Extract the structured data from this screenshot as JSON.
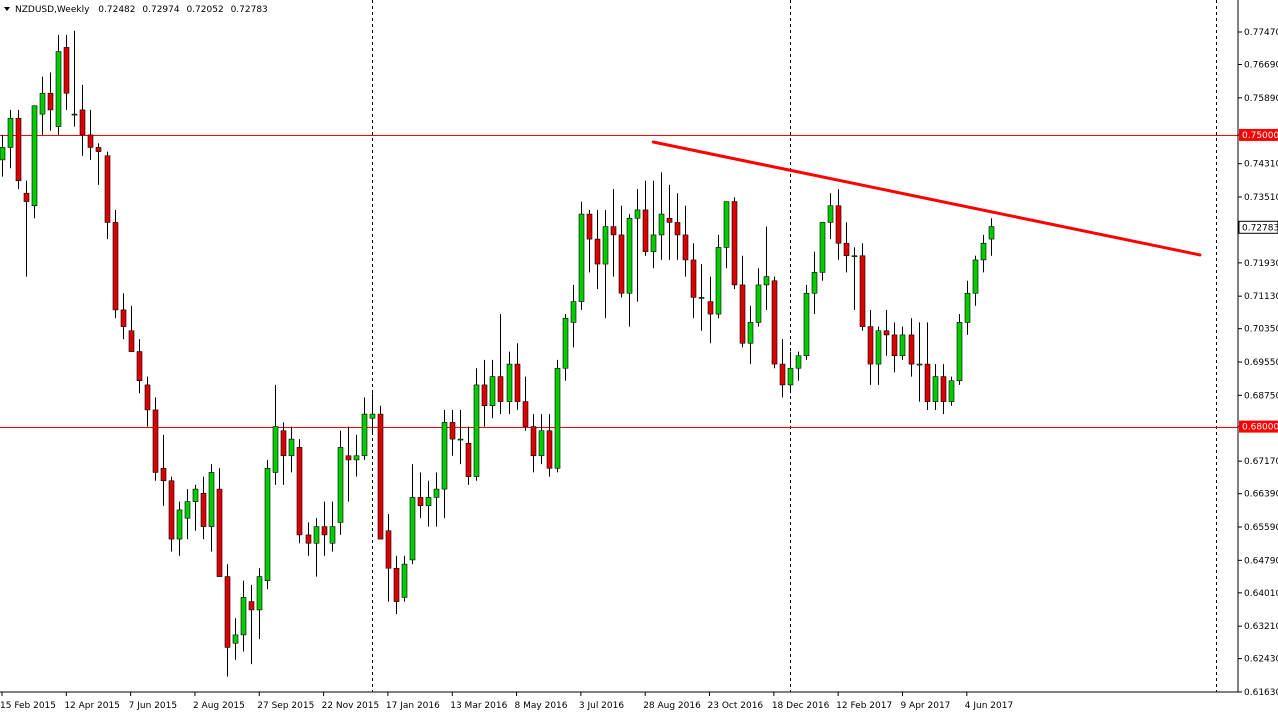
{
  "symbol_header": {
    "symbol": "NZDUSD,Weekly",
    "open": "0.72482",
    "high": "0.72974",
    "low": "0.72052",
    "close": "0.72783"
  },
  "colors": {
    "bull": "#00cc00",
    "bear": "#dd0000",
    "wick": "#000000",
    "level_line": "#ff0000",
    "trendline": "#ff0000",
    "grid_vertical": "#000000",
    "axis": "#000000",
    "background": "#ffffff"
  },
  "chart_data": {
    "type": "candlestick",
    "title": "NZDUSD,Weekly",
    "ylim": [
      0.6163,
      0.778
    ],
    "y_ticks": [
      "0.77470",
      "0.76690",
      "0.75890",
      "0.75000",
      "0.74310",
      "0.73510",
      "0.72783",
      "0.71930",
      "0.71130",
      "0.70350",
      "0.69550",
      "0.68750",
      "0.68000",
      "0.67170",
      "0.66390",
      "0.65590",
      "0.64790",
      "0.64010",
      "0.63210",
      "0.62430",
      "0.61630"
    ],
    "x_tick_labels": [
      {
        "label": "15 Feb 2015",
        "index": 0
      },
      {
        "label": "12 Apr 2015",
        "index": 8
      },
      {
        "label": "7 Jun 2015",
        "index": 16
      },
      {
        "label": "2 Aug 2015",
        "index": 24
      },
      {
        "label": "27 Sep 2015",
        "index": 32
      },
      {
        "label": "22 Nov 2015",
        "index": 40
      },
      {
        "label": "17 Jan 2016",
        "index": 48
      },
      {
        "label": "13 Mar 2016",
        "index": 56
      },
      {
        "label": "8 May 2016",
        "index": 64
      },
      {
        "label": "3 Jul 2016",
        "index": 72
      },
      {
        "label": "28 Aug 2016",
        "index": 80
      },
      {
        "label": "23 Oct 2016",
        "index": 88
      },
      {
        "label": "18 Dec 2016",
        "index": 96
      },
      {
        "label": "12 Feb 2017",
        "index": 104
      },
      {
        "label": "9 Apr 2017",
        "index": 112
      },
      {
        "label": "4 Jun 2017",
        "index": 120
      }
    ],
    "vertical_separators": [
      46,
      98,
      151
    ],
    "horizontal_levels": [
      {
        "value": 0.75,
        "label": "0.75000"
      },
      {
        "value": 0.68,
        "label": "0.68000"
      }
    ],
    "current_price": {
      "value": 0.72783,
      "label": "0.72783"
    },
    "trendline": {
      "start": {
        "index": 81,
        "value": 0.7483
      },
      "end": {
        "index": 149,
        "value": 0.7212
      }
    },
    "ohlc": [
      [
        0.744,
        0.75,
        0.74,
        0.747
      ],
      [
        0.747,
        0.756,
        0.742,
        0.754
      ],
      [
        0.754,
        0.756,
        0.737,
        0.739
      ],
      [
        0.736,
        0.739,
        0.716,
        0.734
      ],
      [
        0.733,
        0.757,
        0.73,
        0.757
      ],
      [
        0.755,
        0.764,
        0.75,
        0.76
      ],
      [
        0.76,
        0.765,
        0.751,
        0.756
      ],
      [
        0.752,
        0.774,
        0.75,
        0.77
      ],
      [
        0.771,
        0.774,
        0.756,
        0.76
      ],
      [
        0.755,
        0.775,
        0.752,
        0.755
      ],
      [
        0.756,
        0.762,
        0.745,
        0.75
      ],
      [
        0.75,
        0.756,
        0.744,
        0.747
      ],
      [
        0.747,
        0.748,
        0.738,
        0.746
      ],
      [
        0.745,
        0.746,
        0.725,
        0.729
      ],
      [
        0.729,
        0.732,
        0.706,
        0.708
      ],
      [
        0.708,
        0.712,
        0.701,
        0.704
      ],
      [
        0.703,
        0.709,
        0.698,
        0.698
      ],
      [
        0.698,
        0.701,
        0.688,
        0.691
      ],
      [
        0.69,
        0.692,
        0.68,
        0.684
      ],
      [
        0.684,
        0.687,
        0.667,
        0.669
      ],
      [
        0.67,
        0.678,
        0.661,
        0.667
      ],
      [
        0.667,
        0.668,
        0.65,
        0.653
      ],
      [
        0.653,
        0.662,
        0.649,
        0.66
      ],
      [
        0.658,
        0.665,
        0.653,
        0.662
      ],
      [
        0.662,
        0.666,
        0.655,
        0.665
      ],
      [
        0.664,
        0.668,
        0.653,
        0.656
      ],
      [
        0.656,
        0.671,
        0.65,
        0.669
      ],
      [
        0.665,
        0.67,
        0.644,
        0.644
      ],
      [
        0.644,
        0.647,
        0.62,
        0.627
      ],
      [
        0.628,
        0.634,
        0.624,
        0.63
      ],
      [
        0.63,
        0.643,
        0.626,
        0.639
      ],
      [
        0.638,
        0.642,
        0.623,
        0.636
      ],
      [
        0.636,
        0.646,
        0.629,
        0.644
      ],
      [
        0.643,
        0.672,
        0.641,
        0.67
      ],
      [
        0.669,
        0.69,
        0.666,
        0.68
      ],
      [
        0.679,
        0.681,
        0.666,
        0.673
      ],
      [
        0.673,
        0.68,
        0.669,
        0.677
      ],
      [
        0.675,
        0.677,
        0.652,
        0.654
      ],
      [
        0.654,
        0.657,
        0.649,
        0.652
      ],
      [
        0.652,
        0.658,
        0.644,
        0.656
      ],
      [
        0.656,
        0.662,
        0.649,
        0.654
      ],
      [
        0.652,
        0.662,
        0.65,
        0.656
      ],
      [
        0.657,
        0.679,
        0.654,
        0.675
      ],
      [
        0.673,
        0.68,
        0.662,
        0.672
      ],
      [
        0.672,
        0.678,
        0.668,
        0.673
      ],
      [
        0.673,
        0.687,
        0.672,
        0.683
      ],
      [
        0.682,
        0.688,
        0.678,
        0.683
      ],
      [
        0.683,
        0.685,
        0.653,
        0.653
      ],
      [
        0.655,
        0.659,
        0.638,
        0.646
      ],
      [
        0.646,
        0.649,
        0.635,
        0.638
      ],
      [
        0.639,
        0.649,
        0.638,
        0.647
      ],
      [
        0.648,
        0.671,
        0.647,
        0.663
      ],
      [
        0.663,
        0.669,
        0.658,
        0.661
      ],
      [
        0.661,
        0.667,
        0.656,
        0.663
      ],
      [
        0.663,
        0.669,
        0.656,
        0.665
      ],
      [
        0.665,
        0.684,
        0.658,
        0.681
      ],
      [
        0.681,
        0.684,
        0.673,
        0.677
      ],
      [
        0.677,
        0.684,
        0.671,
        0.677
      ],
      [
        0.676,
        0.68,
        0.666,
        0.668
      ],
      [
        0.668,
        0.694,
        0.667,
        0.69
      ],
      [
        0.69,
        0.696,
        0.68,
        0.685
      ],
      [
        0.685,
        0.696,
        0.682,
        0.692
      ],
      [
        0.692,
        0.707,
        0.683,
        0.686
      ],
      [
        0.686,
        0.698,
        0.683,
        0.695
      ],
      [
        0.695,
        0.7,
        0.684,
        0.686
      ],
      [
        0.686,
        0.692,
        0.679,
        0.68
      ],
      [
        0.68,
        0.683,
        0.669,
        0.673
      ],
      [
        0.673,
        0.683,
        0.671,
        0.679
      ],
      [
        0.679,
        0.683,
        0.668,
        0.67
      ],
      [
        0.67,
        0.696,
        0.669,
        0.694
      ],
      [
        0.694,
        0.707,
        0.691,
        0.706
      ],
      [
        0.705,
        0.714,
        0.699,
        0.71
      ],
      [
        0.71,
        0.734,
        0.708,
        0.731
      ],
      [
        0.731,
        0.732,
        0.717,
        0.725
      ],
      [
        0.725,
        0.732,
        0.713,
        0.719
      ],
      [
        0.719,
        0.732,
        0.706,
        0.728
      ],
      [
        0.728,
        0.737,
        0.716,
        0.726
      ],
      [
        0.726,
        0.733,
        0.711,
        0.712
      ],
      [
        0.712,
        0.731,
        0.704,
        0.73
      ],
      [
        0.73,
        0.737,
        0.71,
        0.732
      ],
      [
        0.732,
        0.739,
        0.721,
        0.722
      ],
      [
        0.722,
        0.739,
        0.718,
        0.726
      ],
      [
        0.726,
        0.741,
        0.72,
        0.731
      ],
      [
        0.73,
        0.738,
        0.72,
        0.729
      ],
      [
        0.729,
        0.736,
        0.72,
        0.726
      ],
      [
        0.726,
        0.733,
        0.716,
        0.72
      ],
      [
        0.72,
        0.724,
        0.706,
        0.711
      ],
      [
        0.711,
        0.719,
        0.703,
        0.711
      ],
      [
        0.71,
        0.716,
        0.7,
        0.707
      ],
      [
        0.707,
        0.726,
        0.706,
        0.723
      ],
      [
        0.723,
        0.734,
        0.718,
        0.734
      ],
      [
        0.734,
        0.735,
        0.713,
        0.714
      ],
      [
        0.714,
        0.721,
        0.699,
        0.7
      ],
      [
        0.7,
        0.709,
        0.695,
        0.705
      ],
      [
        0.705,
        0.718,
        0.704,
        0.714
      ],
      [
        0.714,
        0.728,
        0.708,
        0.716
      ],
      [
        0.715,
        0.716,
        0.694,
        0.695
      ],
      [
        0.695,
        0.701,
        0.687,
        0.69
      ],
      [
        0.69,
        0.698,
        0.688,
        0.694
      ],
      [
        0.694,
        0.698,
        0.691,
        0.697
      ],
      [
        0.697,
        0.714,
        0.696,
        0.712
      ],
      [
        0.712,
        0.722,
        0.707,
        0.717
      ],
      [
        0.717,
        0.729,
        0.715,
        0.729
      ],
      [
        0.729,
        0.736,
        0.725,
        0.733
      ],
      [
        0.733,
        0.737,
        0.72,
        0.724
      ],
      [
        0.724,
        0.729,
        0.717,
        0.721
      ],
      [
        0.721,
        0.723,
        0.708,
        0.721
      ],
      [
        0.721,
        0.724,
        0.703,
        0.704
      ],
      [
        0.704,
        0.708,
        0.69,
        0.695
      ],
      [
        0.695,
        0.704,
        0.69,
        0.703
      ],
      [
        0.703,
        0.708,
        0.697,
        0.702
      ],
      [
        0.702,
        0.705,
        0.693,
        0.697
      ],
      [
        0.697,
        0.704,
        0.696,
        0.702
      ],
      [
        0.702,
        0.706,
        0.692,
        0.695
      ],
      [
        0.695,
        0.705,
        0.686,
        0.695
      ],
      [
        0.695,
        0.705,
        0.684,
        0.686
      ],
      [
        0.686,
        0.695,
        0.684,
        0.692
      ],
      [
        0.692,
        0.695,
        0.683,
        0.686
      ],
      [
        0.686,
        0.692,
        0.685,
        0.691
      ],
      [
        0.691,
        0.707,
        0.69,
        0.705
      ],
      [
        0.705,
        0.715,
        0.702,
        0.712
      ],
      [
        0.712,
        0.721,
        0.709,
        0.72
      ],
      [
        0.72,
        0.726,
        0.717,
        0.724
      ],
      [
        0.725,
        0.73,
        0.721,
        0.728
      ]
    ]
  }
}
